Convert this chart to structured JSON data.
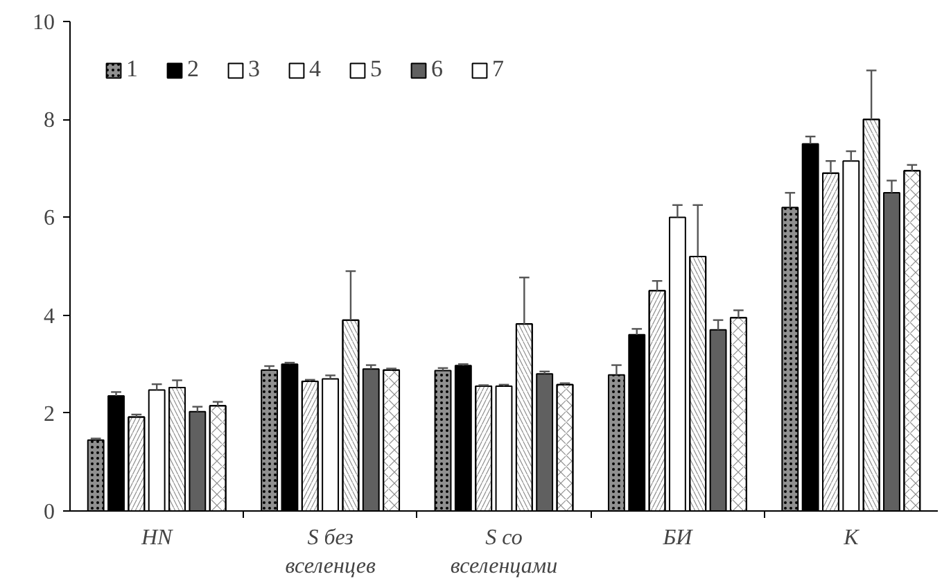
{
  "chart_data": {
    "type": "bar",
    "categories": [
      "HN",
      "S без вселенцев",
      "S со вселенцами",
      "БИ",
      "K"
    ],
    "series": [
      {
        "name": "1",
        "color": "#909090",
        "values": [
          1.45,
          2.88,
          2.87,
          2.78,
          6.2
        ],
        "errors": [
          [
            1.45,
            1.48
          ],
          [
            2.88,
            2.96
          ],
          [
            2.87,
            2.92
          ],
          [
            2.78,
            2.98
          ],
          [
            6.2,
            6.5
          ]
        ]
      },
      {
        "name": "2",
        "color": "#000000",
        "values": [
          2.35,
          3.0,
          2.97,
          3.6,
          7.5
        ],
        "errors": [
          [
            2.35,
            2.43
          ],
          [
            3.0,
            3.03
          ],
          [
            2.97,
            3.0
          ],
          [
            3.6,
            3.72
          ],
          [
            7.5,
            7.65
          ]
        ]
      },
      {
        "name": "3",
        "color": "#ffffff",
        "values": [
          1.92,
          2.65,
          2.55,
          4.5,
          6.9
        ],
        "errors": [
          [
            1.92,
            1.97
          ],
          [
            2.65,
            2.68
          ],
          [
            2.55,
            2.57
          ],
          [
            4.5,
            4.7
          ],
          [
            6.9,
            7.15
          ]
        ]
      },
      {
        "name": "4",
        "color": "#ffffff",
        "values": [
          2.47,
          2.7,
          2.55,
          6.0,
          7.15
        ],
        "errors": [
          [
            2.47,
            2.59
          ],
          [
            2.7,
            2.77
          ],
          [
            2.55,
            2.58
          ],
          [
            6.0,
            6.25
          ],
          [
            7.15,
            7.35
          ]
        ]
      },
      {
        "name": "5",
        "color": "#ffffff",
        "values": [
          2.52,
          3.9,
          3.82,
          5.2,
          8.0
        ],
        "errors": [
          [
            2.52,
            2.67
          ],
          [
            3.9,
            4.9
          ],
          [
            3.82,
            4.77
          ],
          [
            5.2,
            6.25
          ],
          [
            8.0,
            9.0
          ]
        ]
      },
      {
        "name": "6",
        "color": "#606060",
        "values": [
          2.03,
          2.9,
          2.8,
          3.7,
          6.5
        ],
        "errors": [
          [
            2.03,
            2.13
          ],
          [
            2.9,
            2.98
          ],
          [
            2.8,
            2.85
          ],
          [
            3.7,
            3.9
          ],
          [
            6.5,
            6.75
          ]
        ]
      },
      {
        "name": "7",
        "color": "#ffffff",
        "values": [
          2.15,
          2.88,
          2.58,
          3.95,
          6.95
        ],
        "errors": [
          [
            2.15,
            2.23
          ],
          [
            2.88,
            2.91
          ],
          [
            2.58,
            2.61
          ],
          [
            3.95,
            4.1
          ],
          [
            6.95,
            7.07
          ]
        ]
      }
    ],
    "ylim": [
      0,
      10
    ],
    "yticks": [
      0,
      2,
      4,
      6,
      8,
      10
    ],
    "grid": false,
    "legend": "top left"
  }
}
